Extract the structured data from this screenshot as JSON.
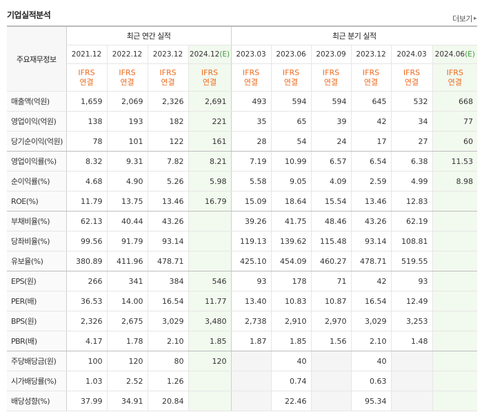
{
  "header": {
    "title": "기업실적분석",
    "more_label": "더보기"
  },
  "table": {
    "corner_label": "주요재무정보",
    "group_annual": "최근 연간 실적",
    "group_quarter": "최근 분기 실적",
    "periods": [
      {
        "label": "2021.12",
        "est": ""
      },
      {
        "label": "2022.12",
        "est": ""
      },
      {
        "label": "2023.12",
        "est": ""
      },
      {
        "label": "2024.12",
        "est": "(E)"
      },
      {
        "label": "2023.03",
        "est": ""
      },
      {
        "label": "2023.06",
        "est": ""
      },
      {
        "label": "2023.09",
        "est": ""
      },
      {
        "label": "2023.12",
        "est": ""
      },
      {
        "label": "2024.03",
        "est": ""
      },
      {
        "label": "2024.06",
        "est": "(E)"
      }
    ],
    "ifrs_line1": "IFRS",
    "ifrs_line2": "연결",
    "rows": [
      {
        "label": "매출액(억원)",
        "values": [
          "1,659",
          "2,069",
          "2,326",
          "2,691",
          "493",
          "594",
          "594",
          "645",
          "532",
          "668"
        ]
      },
      {
        "label": "영업이익(억원)",
        "values": [
          "138",
          "193",
          "182",
          "221",
          "35",
          "65",
          "39",
          "42",
          "34",
          "77"
        ]
      },
      {
        "label": "당기순이익(억원)",
        "values": [
          "78",
          "101",
          "122",
          "161",
          "28",
          "54",
          "24",
          "17",
          "27",
          "60"
        ]
      },
      {
        "label": "영업이익률(%)",
        "values": [
          "8.32",
          "9.31",
          "7.82",
          "8.21",
          "7.19",
          "10.99",
          "6.57",
          "6.54",
          "6.38",
          "11.53"
        ]
      },
      {
        "label": "순이익률(%)",
        "values": [
          "4.68",
          "4.90",
          "5.26",
          "5.98",
          "5.58",
          "9.05",
          "4.09",
          "2.59",
          "4.99",
          "8.98"
        ]
      },
      {
        "label": "ROE(%)",
        "values": [
          "11.79",
          "13.75",
          "13.46",
          "16.79",
          "15.09",
          "18.64",
          "15.54",
          "13.46",
          "12.83",
          ""
        ]
      },
      {
        "label": "부채비율(%)",
        "values": [
          "62.13",
          "40.44",
          "43.26",
          "",
          "39.26",
          "41.75",
          "48.46",
          "43.26",
          "62.19",
          ""
        ]
      },
      {
        "label": "당좌비율(%)",
        "values": [
          "99.56",
          "91.79",
          "93.14",
          "",
          "119.13",
          "139.62",
          "115.48",
          "93.14",
          "108.81",
          ""
        ]
      },
      {
        "label": "유보율(%)",
        "values": [
          "380.89",
          "411.96",
          "478.71",
          "",
          "425.10",
          "454.09",
          "460.27",
          "478.71",
          "519.55",
          ""
        ]
      },
      {
        "label": "EPS(원)",
        "values": [
          "266",
          "341",
          "384",
          "546",
          "93",
          "178",
          "71",
          "42",
          "93",
          ""
        ]
      },
      {
        "label": "PER(배)",
        "values": [
          "36.53",
          "14.00",
          "16.54",
          "11.77",
          "13.40",
          "10.83",
          "10.87",
          "16.54",
          "12.49",
          ""
        ]
      },
      {
        "label": "BPS(원)",
        "values": [
          "2,326",
          "2,675",
          "3,029",
          "3,480",
          "2,738",
          "2,910",
          "2,970",
          "3,029",
          "3,253",
          ""
        ]
      },
      {
        "label": "PBR(배)",
        "values": [
          "4.17",
          "1.78",
          "2.10",
          "1.85",
          "1.87",
          "1.85",
          "1.56",
          "2.10",
          "1.48",
          ""
        ]
      },
      {
        "label": "주당배당금(원)",
        "values": [
          "100",
          "120",
          "80",
          "120",
          "",
          "40",
          "",
          "40",
          "",
          ""
        ]
      },
      {
        "label": "시가배당률(%)",
        "values": [
          "1.03",
          "2.52",
          "1.26",
          "",
          "",
          "0.74",
          "",
          "0.63",
          "",
          ""
        ]
      },
      {
        "label": "배당성향(%)",
        "values": [
          "37.99",
          "34.91",
          "20.84",
          "",
          "",
          "22.46",
          "",
          "95.34",
          "",
          ""
        ]
      }
    ]
  }
}
